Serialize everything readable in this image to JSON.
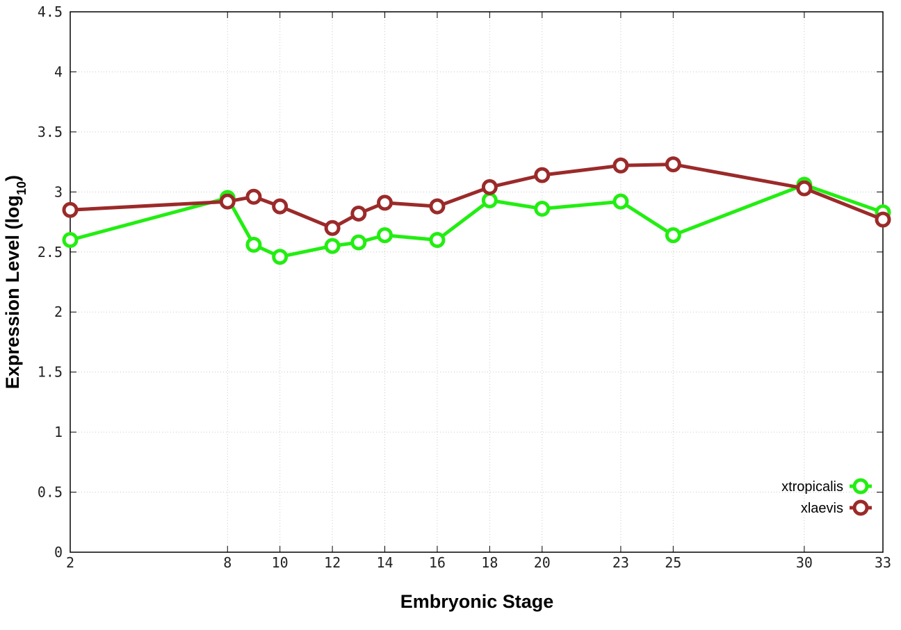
{
  "chart_data": {
    "type": "line",
    "xlabel": "Embryonic Stage",
    "ylabel_main": "Expression Level (log",
    "ylabel_sub": "10",
    "ylabel_close": ")",
    "xlim": [
      2,
      33
    ],
    "ylim": [
      0,
      4.5
    ],
    "x_ticks": [
      2,
      8,
      10,
      12,
      14,
      16,
      18,
      20,
      23,
      25,
      30,
      33
    ],
    "x_tick_labels": [
      "2",
      "8",
      "10",
      "12",
      "14",
      "16",
      "18",
      "20",
      "23",
      "25",
      "30",
      "33"
    ],
    "y_ticks": [
      0,
      0.5,
      1,
      1.5,
      2,
      2.5,
      3,
      3.5,
      4,
      4.5
    ],
    "y_tick_labels": [
      "0",
      "0.5",
      "1",
      "1.5",
      "2",
      "2.5",
      "3",
      "3.5",
      "4",
      "4.5"
    ],
    "grid": true,
    "legend_position": "bottom-right",
    "series": [
      {
        "name": "xtropicalis",
        "color": "#22ee11",
        "x": [
          2,
          8,
          9,
          10,
          12,
          13,
          14,
          16,
          18,
          20,
          23,
          25,
          30,
          33
        ],
        "y": [
          2.6,
          2.95,
          2.56,
          2.46,
          2.55,
          2.58,
          2.64,
          2.6,
          2.93,
          2.86,
          2.92,
          2.64,
          3.06,
          2.83
        ]
      },
      {
        "name": "xlaevis",
        "color": "#9b2a2a",
        "x": [
          2,
          8,
          9,
          10,
          12,
          13,
          14,
          16,
          18,
          20,
          23,
          25,
          30,
          33
        ],
        "y": [
          2.85,
          2.92,
          2.96,
          2.88,
          2.7,
          2.82,
          2.91,
          2.88,
          3.04,
          3.14,
          3.22,
          3.23,
          3.03,
          2.77
        ]
      }
    ]
  }
}
